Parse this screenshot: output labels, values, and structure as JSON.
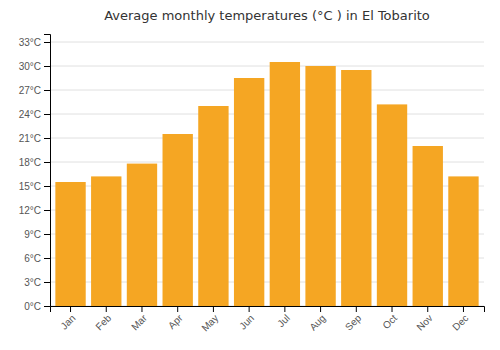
{
  "chart_data": {
    "type": "bar",
    "title": "Average monthly temperatures (°C ) in El Tobarito",
    "categories": [
      "Jan",
      "Feb",
      "Mar",
      "Apr",
      "May",
      "Jun",
      "Jul",
      "Aug",
      "Sep",
      "Oct",
      "Nov",
      "Dec"
    ],
    "values": [
      15.5,
      16.2,
      17.8,
      21.5,
      25.0,
      28.5,
      30.5,
      30.0,
      29.5,
      25.2,
      20.0,
      16.2
    ],
    "color": "#F5A623",
    "ylim": [
      0,
      34
    ],
    "yticks": [
      {
        "value": 0,
        "label": "0°C"
      },
      {
        "value": 3,
        "label": "3°C"
      },
      {
        "value": 6,
        "label": "6°C"
      },
      {
        "value": 9,
        "label": "9°C"
      },
      {
        "value": 12,
        "label": "12°C"
      },
      {
        "value": 15,
        "label": "15°C"
      },
      {
        "value": 18,
        "label": "18°C"
      },
      {
        "value": 21,
        "label": "21°C"
      },
      {
        "value": 24,
        "label": "24°C"
      },
      {
        "value": 27,
        "label": "27°C"
      },
      {
        "value": 30,
        "label": "30°C"
      },
      {
        "value": 33,
        "label": "33°C"
      }
    ],
    "grid": true
  }
}
